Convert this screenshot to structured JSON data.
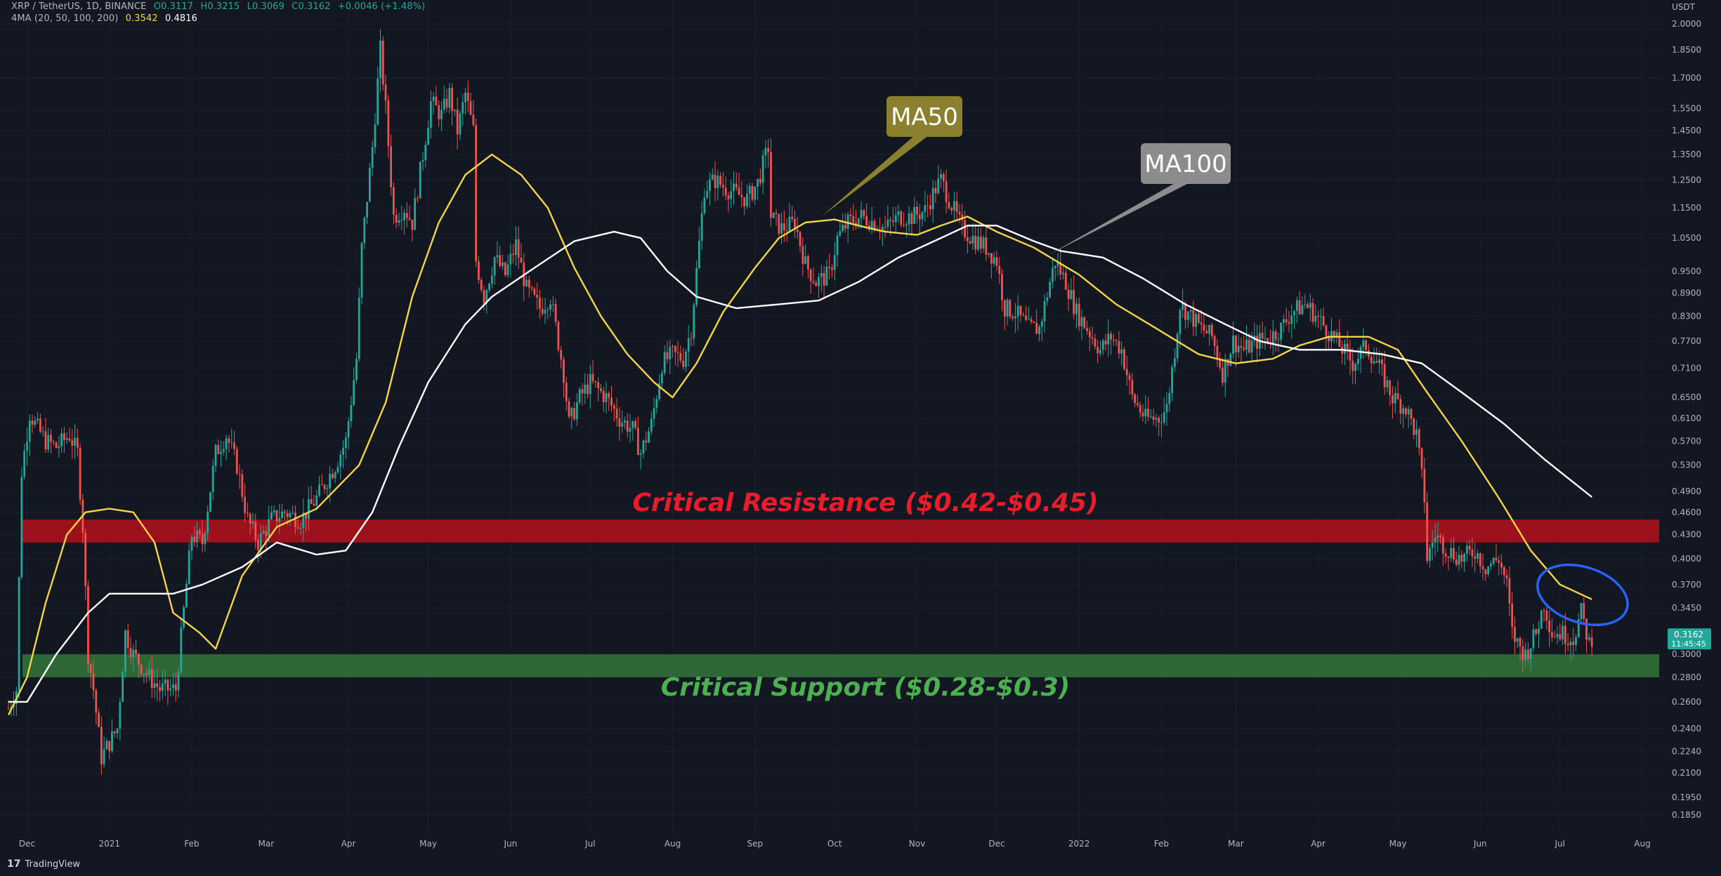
{
  "legend": {
    "symbol": "XRP / TetherUS, 1D, BINANCE",
    "open": "O0.3117",
    "high": "H0.3215",
    "low": "L0.3069",
    "close": "C0.3162",
    "change": "+0.0046 (+1.48%)",
    "indicator": "4MA (20, 50, 100, 200)",
    "ma50_value": "0.3542",
    "ma100_value": "0.4816"
  },
  "brand": "TradingView",
  "colors": {
    "background": "#131722",
    "up": "#26a69a",
    "down": "#ef5350",
    "ma50": "#f5d547",
    "ma100": "#ffffff",
    "resistance": "#a3111c",
    "support": "#2e6b37",
    "resistance_text": "#ea1b2a",
    "support_text": "#4caf50",
    "ellipse": "#2962ff",
    "price_tag": "#26a69a"
  },
  "chart_data": {
    "type": "candlestick",
    "title": "XRP / TetherUS, 1D, BINANCE",
    "y_scale": "log",
    "y_unit": "USDT",
    "y_ticks": [
      0.185,
      0.195,
      0.21,
      0.224,
      0.24,
      0.26,
      0.28,
      0.3,
      0.345,
      0.37,
      0.4,
      0.43,
      0.46,
      0.49,
      0.53,
      0.57,
      0.61,
      0.65,
      0.71,
      0.77,
      0.83,
      0.89,
      0.95,
      1.05,
      1.15,
      1.25,
      1.35,
      1.45,
      1.55,
      1.7,
      1.85,
      2.0
    ],
    "x_labels": [
      "Dec",
      "2021",
      "Feb",
      "Mar",
      "Apr",
      "May",
      "Jun",
      "Jul",
      "Aug",
      "Sep",
      "Oct",
      "Nov",
      "Dec",
      "2022",
      "Feb",
      "Mar",
      "Apr",
      "May",
      "Jun",
      "Jul",
      "Aug"
    ],
    "x_dates": [
      "2020-12-01",
      "2021-01-01",
      "2021-02-01",
      "2021-03-01",
      "2021-04-01",
      "2021-05-01",
      "2021-06-01",
      "2021-07-01",
      "2021-08-01",
      "2021-09-01",
      "2021-10-01",
      "2021-11-01",
      "2021-12-01",
      "2022-01-01",
      "2022-02-01",
      "2022-03-01",
      "2022-04-01",
      "2022-05-01",
      "2022-06-01",
      "2022-07-01",
      "2022-08-01"
    ],
    "price_path": [
      [
        "2020-11-24",
        0.255
      ],
      [
        "2020-11-27",
        0.27
      ],
      [
        "2020-11-29",
        0.52
      ],
      [
        "2020-12-02",
        0.62
      ],
      [
        "2020-12-04",
        0.6
      ],
      [
        "2020-12-08",
        0.57
      ],
      [
        "2020-12-12",
        0.56
      ],
      [
        "2020-12-17",
        0.58
      ],
      [
        "2020-12-20",
        0.55
      ],
      [
        "2020-12-22",
        0.44
      ],
      [
        "2020-12-24",
        0.3
      ],
      [
        "2020-12-26",
        0.27
      ],
      [
        "2020-12-29",
        0.22
      ],
      [
        "2021-01-01",
        0.23
      ],
      [
        "2021-01-04",
        0.24
      ],
      [
        "2021-01-07",
        0.32
      ],
      [
        "2021-01-10",
        0.3
      ],
      [
        "2021-01-16",
        0.28
      ],
      [
        "2021-01-20",
        0.27
      ],
      [
        "2021-01-26",
        0.27
      ],
      [
        "2021-01-30",
        0.37
      ],
      [
        "2021-02-01",
        0.43
      ],
      [
        "2021-02-05",
        0.42
      ],
      [
        "2021-02-10",
        0.55
      ],
      [
        "2021-02-14",
        0.58
      ],
      [
        "2021-02-18",
        0.53
      ],
      [
        "2021-02-22",
        0.45
      ],
      [
        "2021-02-26",
        0.42
      ],
      [
        "2021-03-03",
        0.45
      ],
      [
        "2021-03-08",
        0.46
      ],
      [
        "2021-03-14",
        0.45
      ],
      [
        "2021-03-20",
        0.48
      ],
      [
        "2021-03-27",
        0.53
      ],
      [
        "2021-03-31",
        0.57
      ],
      [
        "2021-04-04",
        0.73
      ],
      [
        "2021-04-06",
        1.02
      ],
      [
        "2021-04-10",
        1.38
      ],
      [
        "2021-04-13",
        1.85
      ],
      [
        "2021-04-15",
        1.55
      ],
      [
        "2021-04-18",
        1.12
      ],
      [
        "2021-04-22",
        1.15
      ],
      [
        "2021-04-25",
        1.1
      ],
      [
        "2021-04-29",
        1.35
      ],
      [
        "2021-05-02",
        1.58
      ],
      [
        "2021-05-06",
        1.52
      ],
      [
        "2021-05-09",
        1.62
      ],
      [
        "2021-05-12",
        1.45
      ],
      [
        "2021-05-15",
        1.62
      ],
      [
        "2021-05-18",
        1.45
      ],
      [
        "2021-05-19",
        0.98
      ],
      [
        "2021-05-22",
        0.88
      ],
      [
        "2021-05-26",
        0.99
      ],
      [
        "2021-05-30",
        0.94
      ],
      [
        "2021-06-03",
        1.03
      ],
      [
        "2021-06-07",
        0.9
      ],
      [
        "2021-06-12",
        0.85
      ],
      [
        "2021-06-16",
        0.88
      ],
      [
        "2021-06-21",
        0.7
      ],
      [
        "2021-06-23",
        0.6
      ],
      [
        "2021-06-27",
        0.65
      ],
      [
        "2021-07-01",
        0.68
      ],
      [
        "2021-07-07",
        0.65
      ],
      [
        "2021-07-12",
        0.61
      ],
      [
        "2021-07-17",
        0.59
      ],
      [
        "2021-07-20",
        0.55
      ],
      [
        "2021-07-24",
        0.6
      ],
      [
        "2021-07-28",
        0.72
      ],
      [
        "2021-08-01",
        0.74
      ],
      [
        "2021-08-05",
        0.73
      ],
      [
        "2021-08-08",
        0.8
      ],
      [
        "2021-08-10",
        0.95
      ],
      [
        "2021-08-13",
        1.22
      ],
      [
        "2021-08-17",
        1.25
      ],
      [
        "2021-08-21",
        1.22
      ],
      [
        "2021-08-25",
        1.2
      ],
      [
        "2021-08-29",
        1.18
      ],
      [
        "2021-09-02",
        1.24
      ],
      [
        "2021-09-06",
        1.38
      ],
      [
        "2021-09-07",
        1.12
      ],
      [
        "2021-09-11",
        1.08
      ],
      [
        "2021-09-16",
        1.1
      ],
      [
        "2021-09-20",
        0.97
      ],
      [
        "2021-09-24",
        0.92
      ],
      [
        "2021-09-29",
        0.94
      ],
      [
        "2021-10-02",
        1.05
      ],
      [
        "2021-10-06",
        1.1
      ],
      [
        "2021-10-11",
        1.12
      ],
      [
        "2021-10-16",
        1.1
      ],
      [
        "2021-10-20",
        1.08
      ],
      [
        "2021-10-25",
        1.12
      ],
      [
        "2021-10-30",
        1.12
      ],
      [
        "2021-11-04",
        1.14
      ],
      [
        "2021-11-08",
        1.22
      ],
      [
        "2021-11-10",
        1.25
      ],
      [
        "2021-11-14",
        1.16
      ],
      [
        "2021-11-18",
        1.08
      ],
      [
        "2021-11-22",
        1.05
      ],
      [
        "2021-11-27",
        1.02
      ],
      [
        "2021-12-01",
        0.98
      ],
      [
        "2021-12-04",
        0.85
      ],
      [
        "2021-12-08",
        0.84
      ],
      [
        "2021-12-13",
        0.8
      ],
      [
        "2021-12-17",
        0.8
      ],
      [
        "2021-12-21",
        0.92
      ],
      [
        "2021-12-23",
        0.98
      ],
      [
        "2021-12-27",
        0.92
      ],
      [
        "2021-12-31",
        0.84
      ],
      [
        "2022-01-04",
        0.8
      ],
      [
        "2022-01-09",
        0.75
      ],
      [
        "2022-01-13",
        0.78
      ],
      [
        "2022-01-17",
        0.75
      ],
      [
        "2022-01-21",
        0.65
      ],
      [
        "2022-01-26",
        0.61
      ],
      [
        "2022-01-31",
        0.61
      ],
      [
        "2022-02-03",
        0.63
      ],
      [
        "2022-02-06",
        0.75
      ],
      [
        "2022-02-08",
        0.86
      ],
      [
        "2022-02-12",
        0.83
      ],
      [
        "2022-02-16",
        0.8
      ],
      [
        "2022-02-20",
        0.78
      ],
      [
        "2022-02-24",
        0.7
      ],
      [
        "2022-02-28",
        0.77
      ],
      [
        "2022-03-04",
        0.75
      ],
      [
        "2022-03-09",
        0.77
      ],
      [
        "2022-03-14",
        0.78
      ],
      [
        "2022-03-18",
        0.8
      ],
      [
        "2022-03-22",
        0.84
      ],
      [
        "2022-03-27",
        0.86
      ],
      [
        "2022-03-30",
        0.84
      ],
      [
        "2022-04-04",
        0.8
      ],
      [
        "2022-04-09",
        0.76
      ],
      [
        "2022-04-14",
        0.72
      ],
      [
        "2022-04-19",
        0.76
      ],
      [
        "2022-04-24",
        0.71
      ],
      [
        "2022-04-29",
        0.65
      ],
      [
        "2022-05-04",
        0.63
      ],
      [
        "2022-05-08",
        0.58
      ],
      [
        "2022-05-11",
        0.48
      ],
      [
        "2022-05-12",
        0.4
      ],
      [
        "2022-05-15",
        0.43
      ],
      [
        "2022-05-20",
        0.41
      ],
      [
        "2022-05-25",
        0.4
      ],
      [
        "2022-05-30",
        0.41
      ],
      [
        "2022-06-03",
        0.39
      ],
      [
        "2022-06-08",
        0.4
      ],
      [
        "2022-06-11",
        0.37
      ],
      [
        "2022-06-13",
        0.32
      ],
      [
        "2022-06-15",
        0.31
      ],
      [
        "2022-06-18",
        0.3
      ],
      [
        "2022-06-22",
        0.32
      ],
      [
        "2022-06-25",
        0.35
      ],
      [
        "2022-06-28",
        0.32
      ],
      [
        "2022-07-01",
        0.32
      ],
      [
        "2022-07-06",
        0.315
      ],
      [
        "2022-07-09",
        0.34
      ],
      [
        "2022-07-12",
        0.31
      ],
      [
        "2022-07-13",
        0.3162
      ]
    ],
    "series": [
      {
        "name": "MA50",
        "values": [
          [
            "2020-11-24",
            0.25
          ],
          [
            "2020-12-01",
            0.28
          ],
          [
            "2020-12-08",
            0.35
          ],
          [
            "2020-12-16",
            0.43
          ],
          [
            "2020-12-23",
            0.46
          ],
          [
            "2021-01-01",
            0.465
          ],
          [
            "2021-01-10",
            0.46
          ],
          [
            "2021-01-18",
            0.42
          ],
          [
            "2021-01-25",
            0.34
          ],
          [
            "2021-02-04",
            0.32
          ],
          [
            "2021-02-10",
            0.305
          ],
          [
            "2021-02-20",
            0.38
          ],
          [
            "2021-03-05",
            0.44
          ],
          [
            "2021-03-20",
            0.465
          ],
          [
            "2021-04-05",
            0.53
          ],
          [
            "2021-04-15",
            0.64
          ],
          [
            "2021-04-25",
            0.88
          ],
          [
            "2021-05-05",
            1.1
          ],
          [
            "2021-05-15",
            1.27
          ],
          [
            "2021-05-25",
            1.35
          ],
          [
            "2021-06-05",
            1.27
          ],
          [
            "2021-06-15",
            1.15
          ],
          [
            "2021-06-25",
            0.96
          ],
          [
            "2021-07-05",
            0.83
          ],
          [
            "2021-07-15",
            0.74
          ],
          [
            "2021-07-25",
            0.68
          ],
          [
            "2021-08-01",
            0.65
          ],
          [
            "2021-08-10",
            0.72
          ],
          [
            "2021-08-20",
            0.84
          ],
          [
            "2021-09-01",
            0.96
          ],
          [
            "2021-09-10",
            1.05
          ],
          [
            "2021-09-20",
            1.1
          ],
          [
            "2021-10-01",
            1.11
          ],
          [
            "2021-10-10",
            1.09
          ],
          [
            "2021-10-20",
            1.07
          ],
          [
            "2021-11-01",
            1.06
          ],
          [
            "2021-11-10",
            1.09
          ],
          [
            "2021-11-20",
            1.12
          ],
          [
            "2021-12-01",
            1.07
          ],
          [
            "2021-12-15",
            1.02
          ],
          [
            "2022-01-01",
            0.94
          ],
          [
            "2022-01-15",
            0.86
          ],
          [
            "2022-01-30",
            0.8
          ],
          [
            "2022-02-15",
            0.74
          ],
          [
            "2022-03-01",
            0.72
          ],
          [
            "2022-03-15",
            0.73
          ],
          [
            "2022-03-25",
            0.76
          ],
          [
            "2022-04-05",
            0.78
          ],
          [
            "2022-04-20",
            0.78
          ],
          [
            "2022-05-01",
            0.75
          ],
          [
            "2022-05-12",
            0.66
          ],
          [
            "2022-05-25",
            0.57
          ],
          [
            "2022-06-08",
            0.48
          ],
          [
            "2022-06-20",
            0.41
          ],
          [
            "2022-07-01",
            0.37
          ],
          [
            "2022-07-13",
            0.354
          ]
        ]
      },
      {
        "name": "MA100",
        "values": [
          [
            "2020-11-24",
            0.26
          ],
          [
            "2020-12-01",
            0.26
          ],
          [
            "2020-12-12",
            0.3
          ],
          [
            "2020-12-24",
            0.34
          ],
          [
            "2021-01-01",
            0.36
          ],
          [
            "2021-01-10",
            0.36
          ],
          [
            "2021-01-25",
            0.36
          ],
          [
            "2021-02-05",
            0.37
          ],
          [
            "2021-02-20",
            0.39
          ],
          [
            "2021-03-05",
            0.42
          ],
          [
            "2021-03-20",
            0.405
          ],
          [
            "2021-03-31",
            0.41
          ],
          [
            "2021-04-10",
            0.46
          ],
          [
            "2021-04-20",
            0.56
          ],
          [
            "2021-05-01",
            0.68
          ],
          [
            "2021-05-15",
            0.81
          ],
          [
            "2021-05-25",
            0.88
          ],
          [
            "2021-06-10",
            0.96
          ],
          [
            "2021-06-25",
            1.04
          ],
          [
            "2021-07-10",
            1.07
          ],
          [
            "2021-07-20",
            1.05
          ],
          [
            "2021-07-30",
            0.95
          ],
          [
            "2021-08-10",
            0.88
          ],
          [
            "2021-08-25",
            0.85
          ],
          [
            "2021-09-10",
            0.86
          ],
          [
            "2021-09-25",
            0.87
          ],
          [
            "2021-10-10",
            0.92
          ],
          [
            "2021-10-25",
            0.99
          ],
          [
            "2021-11-10",
            1.05
          ],
          [
            "2021-11-20",
            1.09
          ],
          [
            "2021-12-01",
            1.09
          ],
          [
            "2021-12-15",
            1.04
          ],
          [
            "2021-12-25",
            1.01
          ],
          [
            "2022-01-10",
            0.99
          ],
          [
            "2022-01-25",
            0.93
          ],
          [
            "2022-02-10",
            0.86
          ],
          [
            "2022-02-25",
            0.81
          ],
          [
            "2022-03-10",
            0.77
          ],
          [
            "2022-03-25",
            0.75
          ],
          [
            "2022-04-10",
            0.75
          ],
          [
            "2022-04-25",
            0.74
          ],
          [
            "2022-05-10",
            0.72
          ],
          [
            "2022-05-25",
            0.66
          ],
          [
            "2022-06-10",
            0.6
          ],
          [
            "2022-06-25",
            0.54
          ],
          [
            "2022-07-13",
            0.4816
          ]
        ]
      }
    ],
    "zones": [
      {
        "label": "Critical Resistance ($0.42-$0.45)",
        "low": 0.42,
        "high": 0.45
      },
      {
        "label": "Critical Support ($0.28-$0.3)",
        "low": 0.28,
        "high": 0.3
      }
    ],
    "callouts": [
      {
        "label": "MA50",
        "date": "2021-09-26",
        "value": 1.12
      },
      {
        "label": "MA100",
        "date": "2021-12-21",
        "value": 1.0
      }
    ],
    "highlight": {
      "date_from": "2022-06-22",
      "date_to": "2022-07-27",
      "value_low": 0.33,
      "value_high": 0.39
    },
    "last_price": {
      "value": "0.3162",
      "countdown": "11:45:45"
    }
  }
}
